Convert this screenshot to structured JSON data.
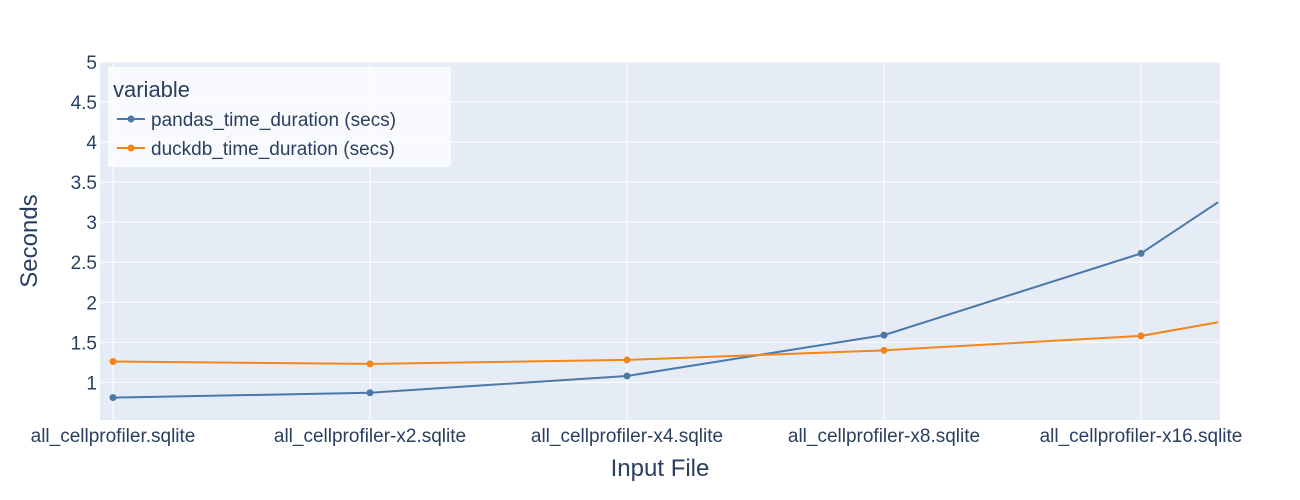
{
  "chart_data": {
    "type": "line",
    "xlabel": "Input File",
    "ylabel": "Seconds",
    "categories": [
      "all_cellprofiler.sqlite",
      "all_cellprofiler-x2.sqlite",
      "all_cellprofiler-x4.sqlite",
      "all_cellprofiler-x8.sqlite",
      "all_cellprofiler-x16.sqlite"
    ],
    "x_extends_to": 5.3,
    "ylim": [
      0.53,
      5
    ],
    "yticks": [
      1,
      1.5,
      2,
      2.5,
      3,
      3.5,
      4,
      4.5,
      5
    ],
    "ytick_labels": [
      "1",
      "1.5",
      "2",
      "2.5",
      "3",
      "3.5",
      "4",
      "4.5",
      "5"
    ],
    "grid": true,
    "legend": {
      "title": "variable",
      "position": "top-left"
    },
    "series": [
      {
        "name": "pandas_time_duration (secs)",
        "color": "#4c78a8",
        "values": [
          0.81,
          0.87,
          1.08,
          1.59,
          2.61
        ],
        "continues_to": 3.25
      },
      {
        "name": "duckdb_time_duration (secs)",
        "color": "#f58518",
        "values": [
          1.26,
          1.23,
          1.28,
          1.4,
          1.58
        ],
        "continues_to": 1.75
      }
    ]
  },
  "colors": {
    "plot_background": "#e5ecf6",
    "grid": "#ffffff",
    "text": "#2a3f5f"
  }
}
